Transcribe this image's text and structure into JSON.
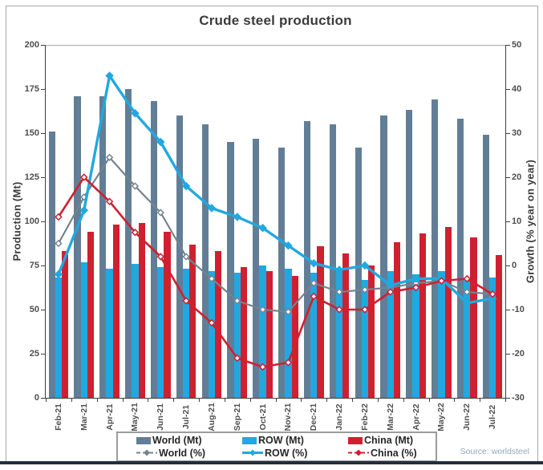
{
  "title": "Crude steel production",
  "source_note": "Source: worldsteel",
  "colors": {
    "world_bar": "#627e96",
    "row_bar": "#21a8e0",
    "china_bar": "#cf2030",
    "world_line": "#75838e",
    "row_line": "#21a8e0",
    "china_line": "#cf2030",
    "axis": "#3f3f3f",
    "tick_label": "#4d4d4d",
    "title_text": "#3b3b3b",
    "frame_border": "#a8a8a8",
    "legend_border": "#9c9c9c",
    "bottom_bar": "#232e3b",
    "source_text": "#8fa9bd"
  },
  "axes": {
    "left_title": "Production (Mt)",
    "right_title": "Growth (% year on year)",
    "left_ticks": [
      0,
      25,
      50,
      75,
      100,
      125,
      150,
      175,
      200
    ],
    "right_ticks": [
      -30,
      -20,
      -10,
      0,
      10,
      20,
      30,
      40,
      50
    ]
  },
  "legend": {
    "row1": [
      {
        "label": "World (Mt)",
        "kind": "bar",
        "color_key": "world_bar"
      },
      {
        "label": "ROW (Mt)",
        "kind": "bar",
        "color_key": "row_bar"
      },
      {
        "label": "China (Mt)",
        "kind": "bar",
        "color_key": "china_bar"
      }
    ],
    "row2": [
      {
        "label": "World (%)",
        "kind": "line",
        "dashed": true,
        "color_key": "world_line"
      },
      {
        "label": "ROW (%)",
        "kind": "line",
        "dashed": false,
        "color_key": "row_line"
      },
      {
        "label": "China (%)",
        "kind": "line",
        "dashed": true,
        "color_key": "china_line"
      }
    ]
  },
  "chart_data": {
    "type": "combo bar+line",
    "categories": [
      "Feb-21",
      "Mar-21",
      "Apr-21",
      "May-21",
      "Jun-21",
      "Jul-21",
      "Aug-21",
      "Sep-21",
      "Oct-21",
      "Nov-21",
      "Dec-21",
      "Jan-22",
      "Feb-22",
      "Mar-22",
      "Apr-22",
      "May-22",
      "Jun-22",
      "Jul-22"
    ],
    "left_axis": {
      "label": "Production (Mt)",
      "min": 0,
      "max": 200,
      "tick_step": 25
    },
    "right_axis": {
      "label": "Growth (% year on year)",
      "min": -30,
      "max": 50,
      "tick_step": 10
    },
    "grid": false,
    "legend_position": "bottom",
    "series": [
      {
        "name": "World (Mt)",
        "type": "bar",
        "axis": "left",
        "color_key": "world_bar",
        "values": [
          151,
          171,
          171,
          175,
          168,
          160,
          155,
          145,
          147,
          142,
          157,
          155,
          142,
          160,
          163,
          169,
          158,
          149
        ]
      },
      {
        "name": "ROW (Mt)",
        "type": "bar",
        "axis": "left",
        "color_key": "row_bar",
        "values": [
          68,
          77,
          73,
          76,
          74,
          73,
          72,
          71,
          75,
          73,
          71,
          73,
          67,
          72,
          70,
          72,
          67,
          68
        ]
      },
      {
        "name": "China (Mt)",
        "type": "bar",
        "axis": "left",
        "color_key": "china_bar",
        "values": [
          83,
          94,
          98,
          99,
          94,
          87,
          83,
          74,
          72,
          69,
          86,
          82,
          75,
          88,
          93,
          97,
          91,
          81
        ]
      },
      {
        "name": "World (%)",
        "type": "line",
        "axis": "right",
        "color_key": "world_line",
        "marker": "open-diamond",
        "values": [
          5,
          15.5,
          24.5,
          18,
          12,
          2,
          -3,
          -8,
          -10,
          -10.5,
          -4,
          -6,
          -5.5,
          -5,
          -4,
          -3.5,
          -6,
          -6.5
        ]
      },
      {
        "name": "ROW (%)",
        "type": "line",
        "axis": "right",
        "color_key": "row_line",
        "marker": "solid-diamond",
        "values": [
          -2,
          12.5,
          43,
          34.5,
          28,
          18,
          13,
          11,
          8.5,
          4.5,
          0.5,
          -1,
          0,
          -4.5,
          -3,
          -3,
          -8.5,
          -7.5
        ]
      },
      {
        "name": "China (%)",
        "type": "line",
        "axis": "right",
        "color_key": "china_line",
        "marker": "open-diamond",
        "values": [
          11,
          20,
          14.5,
          7.5,
          2,
          -8,
          -13,
          -21,
          -23,
          -22,
          -7,
          -10,
          -10,
          -6,
          -5,
          -3.5,
          -3,
          -6.5
        ]
      }
    ]
  }
}
